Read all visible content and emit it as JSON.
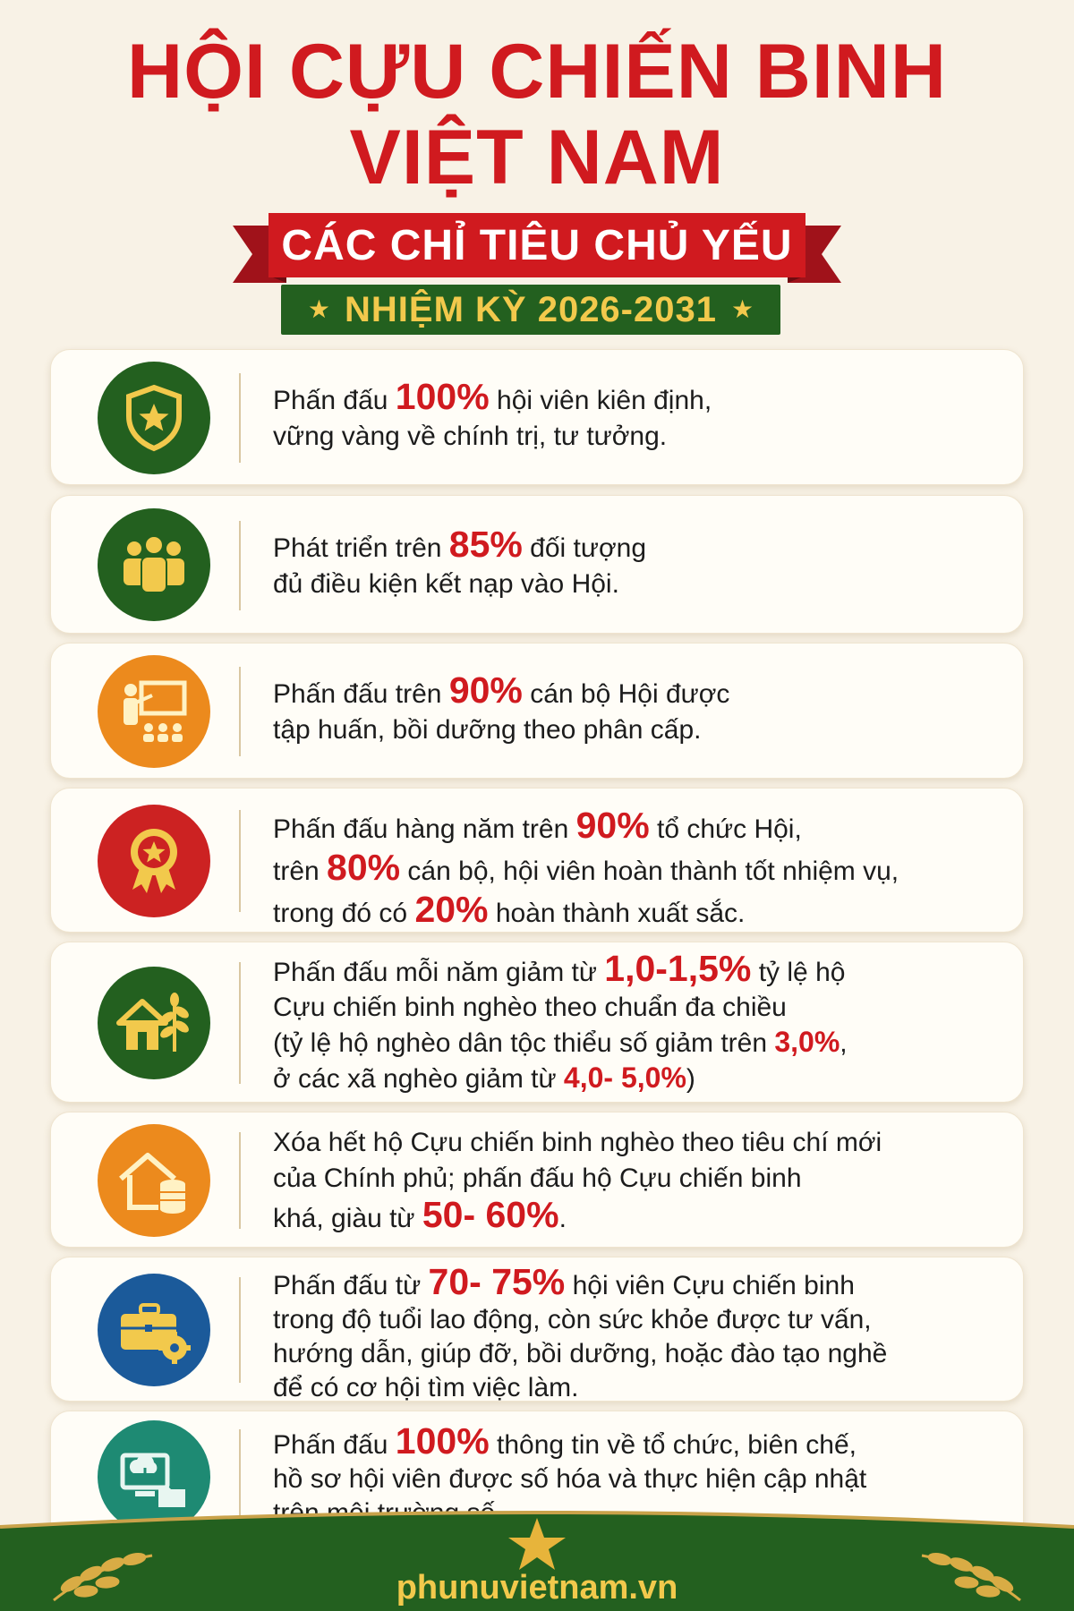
{
  "header": {
    "title_line1": "HỘI CỰU CHIẾN BINH",
    "title_line2": "VIỆT NAM",
    "ribbon": "CÁC CHỈ TIÊU CHỦ YẾU",
    "term": "NHIỆM KỲ 2026-2031",
    "star": "★"
  },
  "colors": {
    "title_red": "#d01a1f",
    "green": "#23601f",
    "gold": "#f2c94c",
    "orange": "#ec8a1d",
    "red": "#cc2222",
    "blue": "#1b5a9a",
    "teal": "#1e8a73"
  },
  "targets": [
    {
      "icon": "shield-star-icon",
      "l1a": "Phấn đấu ",
      "l1h": "100%",
      "l1b": " hội viên kiên định,",
      "l2": "vững vàng về chính trị, tư tưởng."
    },
    {
      "icon": "people-group-icon",
      "l1a": "Phát triển trên ",
      "l1h": "85%",
      "l1b": " đối tượng",
      "l2": "đủ điều kiện kết nạp vào Hội."
    },
    {
      "icon": "training-board-icon",
      "l1a": "Phấn đấu trên ",
      "l1h": "90%",
      "l1b": " cán bộ Hội được",
      "l2": "tập huấn, bồi dưỡng theo phân cấp."
    },
    {
      "icon": "medal-ribbon-icon",
      "l1a": "Phấn đấu hàng năm trên ",
      "l1h": "90%",
      "l1b": " tổ chức Hội,",
      "l2a": "trên ",
      "l2h": "80%",
      "l2b": " cán bộ, hội viên hoàn thành tốt nhiệm vụ,",
      "l3a": "trong đó có ",
      "l3h": "20%",
      "l3b": " hoàn thành xuất sắc."
    },
    {
      "icon": "house-plant-icon",
      "l1a": "Phấn đấu mỗi năm giảm từ ",
      "l1h": "1,0-1,5%",
      "l1b": " tỷ lệ hộ",
      "l2": "Cựu chiến binh nghèo theo chuẩn đa chiều",
      "l3a": "(tỷ lệ hộ nghèo dân tộc thiểu số giảm trên ",
      "l3h": "3,0%",
      "l3b": ",",
      "l4a": "ở các xã  nghèo giảm từ ",
      "l4h": "4,0- 5,0%",
      "l4b": ")"
    },
    {
      "icon": "house-coins-icon",
      "l1": "Xóa hết hộ Cựu chiến binh nghèo theo tiêu chí mới",
      "l2": "của Chính phủ; phấn đấu hộ Cựu chiến binh",
      "l3a": "khá, giàu từ ",
      "l3h": "50- 60%",
      "l3b": "."
    },
    {
      "icon": "briefcase-gear-icon",
      "l1a": "Phấn đấu từ ",
      "l1h": "70- 75%",
      "l1b": " hội viên Cựu chiến binh",
      "l2": "trong độ tuổi lao động, còn sức khỏe được tư vấn,",
      "l3": "hướng dẫn, giúp đỡ, bồi dưỡng, hoặc đào tạo nghề",
      "l4": "để có cơ hội tìm việc làm."
    },
    {
      "icon": "cloud-computer-icon",
      "l1a": "Phấn đấu ",
      "l1h": "100%",
      "l1b": " thông tin về tổ chức, biên chế,",
      "l2": "hồ sơ hội viên được số hóa và thực hiện cập nhật",
      "l3": "trên môi trường số."
    }
  ],
  "footer": {
    "site": "phunuvietnam.vn",
    "star_icon": "gold-star-icon",
    "laurel_icon": "laurel-branch-icon"
  }
}
